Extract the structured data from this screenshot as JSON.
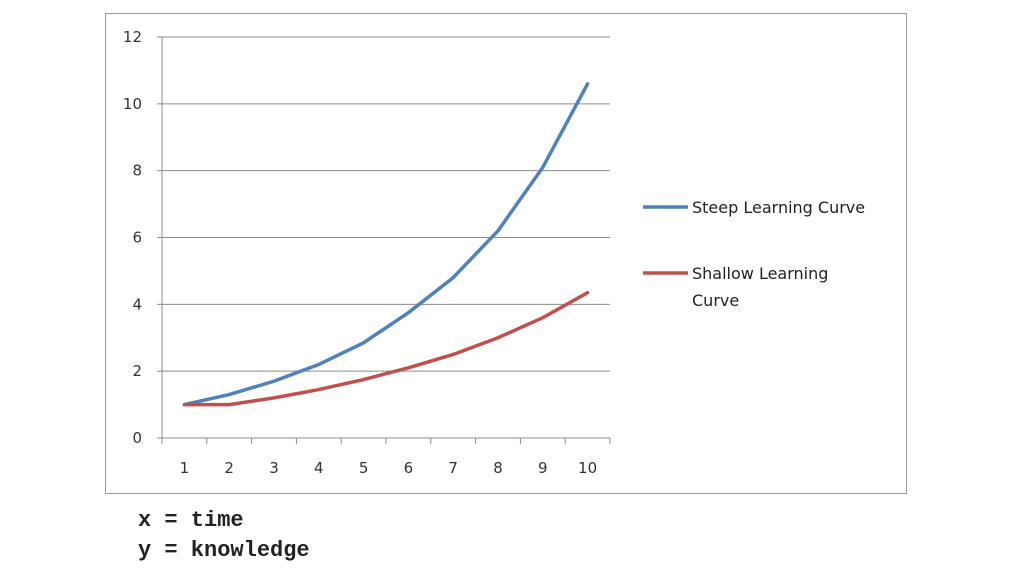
{
  "chart_data": {
    "type": "line",
    "x": [
      1,
      2,
      3,
      4,
      5,
      6,
      7,
      8,
      9,
      10
    ],
    "ylim": [
      0,
      12
    ],
    "yticks": [
      0,
      2,
      4,
      6,
      8,
      10,
      12
    ],
    "grid": true,
    "legend_position": "right",
    "series": [
      {
        "name": "Steep Learning Curve",
        "color": "#4f81bd",
        "values": [
          1.0,
          1.3,
          1.7,
          2.2,
          2.85,
          3.75,
          4.8,
          6.2,
          8.1,
          10.6
        ]
      },
      {
        "name": "Shallow Learning Curve",
        "color": "#c0504d",
        "values": [
          1.0,
          1.0,
          1.2,
          1.45,
          1.75,
          2.1,
          2.5,
          3.0,
          3.6,
          4.35
        ]
      }
    ]
  },
  "captions": {
    "x_line": "x = time",
    "y_line": "y = knowledge"
  }
}
